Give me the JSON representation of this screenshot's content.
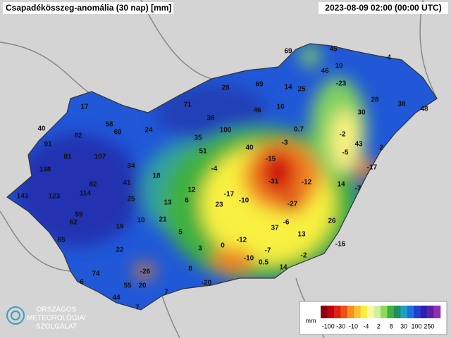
{
  "header": {
    "title": "Csapadékösszeg-anomália (30 nap) [mm]",
    "timestamp": "2023-08-09 02:00 (00:00 UTC)"
  },
  "stations": [
    69,
    45,
    4,
    10,
    46,
    -23,
    28,
    69,
    14,
    25,
    28,
    38,
    48,
    17,
    71,
    46,
    16,
    30,
    58,
    38,
    0.7,
    40,
    69,
    24,
    100,
    -2,
    82,
    35,
    -3,
    43,
    91,
    40,
    2,
    51,
    -5,
    81,
    107,
    -15,
    34,
    -4,
    -17,
    138,
    18,
    82,
    41,
    -31,
    -12,
    14,
    -7,
    12,
    143,
    123,
    114,
    -17,
    -10,
    25,
    13,
    6,
    23,
    -27,
    59,
    10,
    21,
    62,
    19,
    -6,
    37,
    26,
    5,
    13,
    65,
    -12,
    0,
    3,
    -16,
    22,
    -7,
    -2,
    -10,
    0.5,
    8,
    14,
    74,
    -26,
    6,
    55,
    20,
    7,
    -20,
    44,
    7
  ],
  "legend": {
    "unit": "mm",
    "ticks": [
      -100,
      -30,
      -10,
      -4,
      2,
      8,
      30,
      100,
      250
    ],
    "colors": [
      "#8b0010",
      "#c00010",
      "#e02010",
      "#f05010",
      "#f89020",
      "#f8c030",
      "#f8f040",
      "#f8f8a0",
      "#d0f0a0",
      "#90d860",
      "#40b040",
      "#209060",
      "#20a0c0",
      "#2070e0",
      "#2040d0",
      "#3020b0",
      "#6020a0",
      "#9030b0"
    ]
  },
  "logo": {
    "line1": "ORSZÁGOS",
    "line2": "METEOROLÓGIAI",
    "line3": "SZOLGÁLAT"
  }
}
